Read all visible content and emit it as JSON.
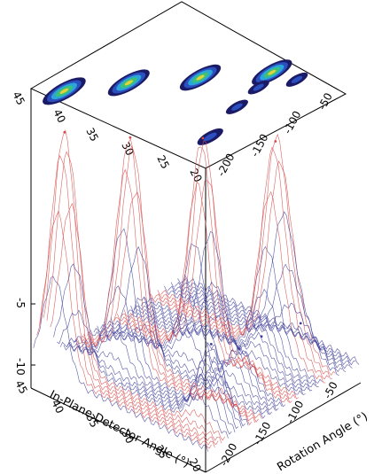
{
  "chart_data": {
    "type": "surface-3d",
    "xlabel": "In-Plane Detector Angle (°)",
    "ylabel": "Rotation Angle (°)",
    "x_ticks": [
      "20",
      "25",
      "30",
      "35",
      "40",
      "45"
    ],
    "y_ticks": [
      "-200",
      "-150",
      "-100",
      "-50"
    ],
    "z_ticks": [
      "-10",
      "-5"
    ],
    "x_range": [
      20,
      45
    ],
    "y_range": [
      -215,
      -30
    ],
    "z_range": [
      -11,
      0
    ],
    "peaks": [
      {
        "x": 42,
        "y": -200,
        "z": -1.5
      },
      {
        "x": 38,
        "y": -155,
        "z": -2.0
      },
      {
        "x": 33,
        "y": -110,
        "z": -2.2
      },
      {
        "x": 28,
        "y": -65,
        "z": -2.5
      },
      {
        "x": 24,
        "y": -175,
        "z": -7.5
      },
      {
        "x": 26,
        "y": -125,
        "z": -8.8
      },
      {
        "x": 27,
        "y": -90,
        "z": -9.1
      },
      {
        "x": 25,
        "y": -60,
        "z": -8.9
      }
    ],
    "colors": {
      "line": "#3d3d99",
      "peak_line": "#d84848",
      "axis": "#000000"
    }
  }
}
